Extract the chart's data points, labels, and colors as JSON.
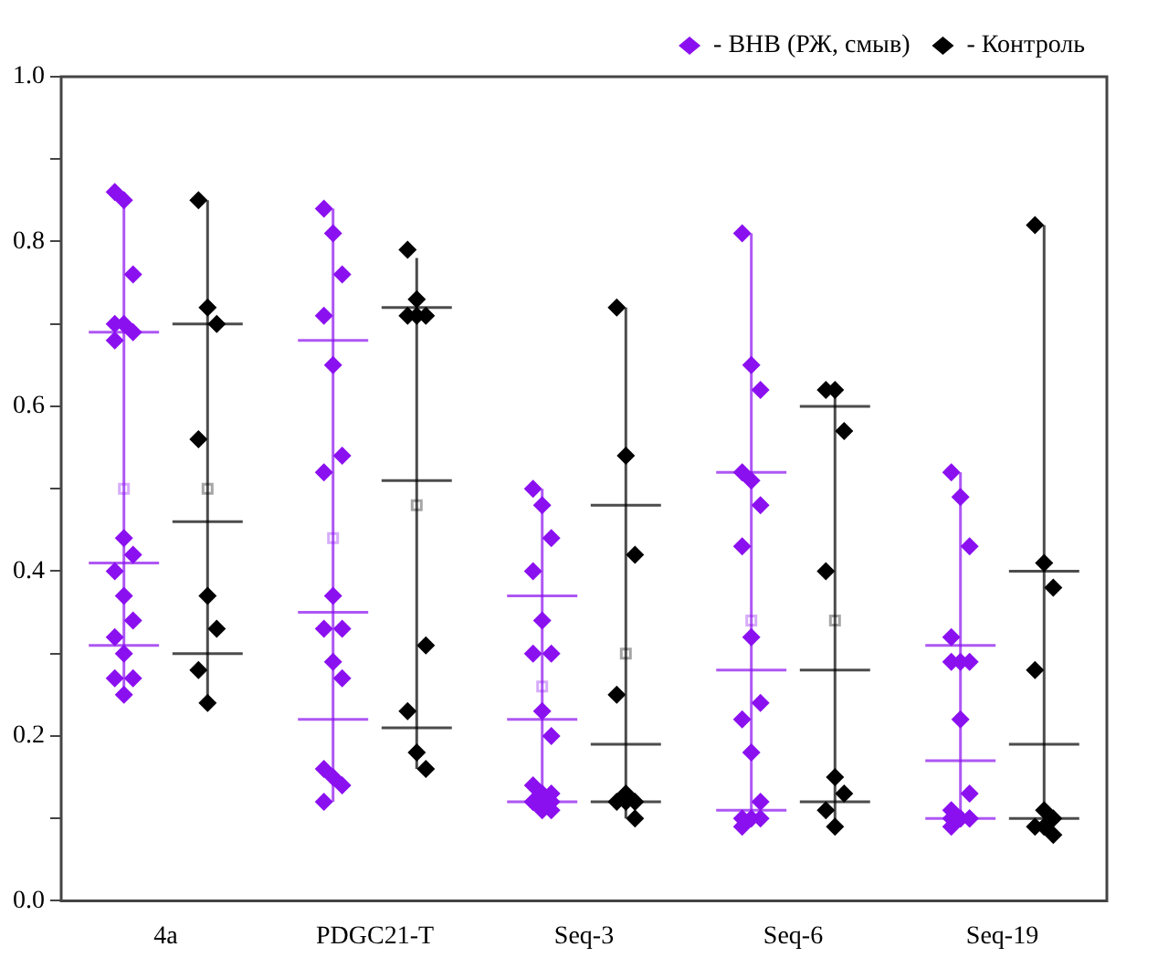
{
  "chart_data": {
    "type": "box",
    "categories": [
      "4a",
      "PDGC21-T",
      "Seq-3",
      "Seq-6",
      "Seq-19"
    ],
    "ylim": [
      0,
      1
    ],
    "yticks": [
      {
        "value": 0,
        "label": "0.0"
      },
      {
        "value": 0.1,
        "label": null
      },
      {
        "value": 0.2,
        "label": "0.2"
      },
      {
        "value": 0.3,
        "label": null
      },
      {
        "value": 0.4,
        "label": "0.4"
      },
      {
        "value": 0.5,
        "label": null
      },
      {
        "value": 0.6,
        "label": "0.6"
      },
      {
        "value": 0.7,
        "label": null
      },
      {
        "value": 0.8,
        "label": "0.8"
      },
      {
        "value": 0.9,
        "label": null
      },
      {
        "value": 1,
        "label": "1.0"
      }
    ],
    "legend": "top right",
    "marker": "diamond",
    "series": [
      {
        "name": "- ВНВ (РЖ, смыв)",
        "color": "#8b10f0",
        "boxes": [
          {
            "low": 0.25,
            "q1": 0.31,
            "median": 0.41,
            "q3": 0.69,
            "high": 0.86,
            "mean": 0.5,
            "outliers": [
              0.86,
              0.85,
              0.76,
              0.7,
              0.7,
              0.69,
              0.68,
              0.44,
              0.42,
              0.4,
              0.37,
              0.34,
              0.32,
              0.3,
              0.27,
              0.27,
              0.25
            ]
          },
          {
            "low": 0.12,
            "q1": 0.22,
            "median": 0.35,
            "q3": 0.68,
            "high": 0.84,
            "mean": 0.44,
            "outliers": [
              0.84,
              0.81,
              0.76,
              0.71,
              0.65,
              0.54,
              0.52,
              0.37,
              0.33,
              0.33,
              0.29,
              0.27,
              0.16,
              0.15,
              0.14,
              0.12
            ]
          },
          {
            "low": 0.11,
            "q1": 0.12,
            "median": 0.22,
            "q3": 0.37,
            "high": 0.5,
            "mean": 0.26,
            "outliers": [
              0.5,
              0.48,
              0.44,
              0.4,
              0.34,
              0.3,
              0.3,
              0.23,
              0.2,
              0.14,
              0.13,
              0.13,
              0.12,
              0.12,
              0.12,
              0.12,
              0.11,
              0.11
            ]
          },
          {
            "low": 0.09,
            "q1": 0.11,
            "median": 0.28,
            "q3": 0.52,
            "high": 0.81,
            "mean": 0.34,
            "outliers": [
              0.81,
              0.65,
              0.62,
              0.52,
              0.51,
              0.48,
              0.43,
              0.32,
              0.24,
              0.22,
              0.18,
              0.12,
              0.1,
              0.1,
              0.1,
              0.09
            ]
          },
          {
            "low": 0.09,
            "q1": 0.1,
            "median": 0.17,
            "q3": 0.31,
            "high": 0.52,
            "outliers": [
              0.52,
              0.49,
              0.43,
              0.32,
              0.29,
              0.29,
              0.29,
              0.22,
              0.13,
              0.11,
              0.1,
              0.1,
              0.1,
              0.1,
              0.1,
              0.09
            ]
          }
        ]
      },
      {
        "name": "- Контроль",
        "color": "#000000",
        "boxes": [
          {
            "low": 0.24,
            "q1": 0.3,
            "median": 0.46,
            "q3": 0.7,
            "high": 0.85,
            "mean": 0.5,
            "outliers": [
              0.85,
              0.72,
              0.7,
              0.56,
              0.37,
              0.33,
              0.28,
              0.24
            ]
          },
          {
            "low": 0.16,
            "q1": 0.21,
            "median": 0.51,
            "q3": 0.72,
            "high": 0.78,
            "mean": 0.48,
            "outliers": [
              0.79,
              0.73,
              0.71,
              0.71,
              0.71,
              0.31,
              0.23,
              0.18,
              0.16
            ]
          },
          {
            "low": 0.1,
            "q1": 0.12,
            "median": 0.19,
            "q3": 0.48,
            "high": 0.72,
            "mean": 0.3,
            "outliers": [
              0.72,
              0.54,
              0.42,
              0.25,
              0.13,
              0.12,
              0.12,
              0.12,
              0.1
            ]
          },
          {
            "low": 0.09,
            "q1": 0.12,
            "median": 0.28,
            "q3": 0.6,
            "high": 0.62,
            "mean": 0.34,
            "outliers": [
              0.62,
              0.62,
              0.57,
              0.4,
              0.15,
              0.13,
              0.11,
              0.09
            ]
          },
          {
            "low": 0.08,
            "q1": 0.1,
            "median": 0.19,
            "q3": 0.4,
            "high": 0.82,
            "outliers": [
              0.82,
              0.41,
              0.38,
              0.28,
              0.11,
              0.1,
              0.09,
              0.09,
              0.08
            ]
          }
        ]
      }
    ]
  }
}
